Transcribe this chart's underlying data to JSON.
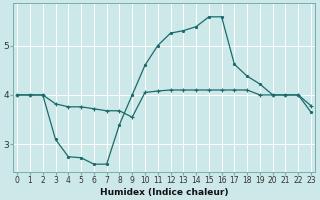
{
  "xlabel": "Humidex (Indice chaleur)",
  "background_color": "#cce8e8",
  "grid_color": "#ffffff",
  "line_color": "#1a6b6b",
  "x_ticks": [
    0,
    1,
    2,
    3,
    4,
    5,
    6,
    7,
    8,
    9,
    10,
    11,
    12,
    13,
    14,
    15,
    16,
    17,
    18,
    19,
    20,
    21,
    22,
    23
  ],
  "y_ticks": [
    3,
    4,
    5
  ],
  "ylim": [
    2.45,
    5.85
  ],
  "xlim": [
    -0.3,
    23.3
  ],
  "line1_x": [
    0,
    1,
    2,
    3,
    4,
    5,
    6,
    7,
    8,
    9,
    10,
    11,
    12,
    13,
    14,
    15,
    16,
    17,
    18,
    19,
    20,
    21,
    22,
    23
  ],
  "line1_y": [
    4.0,
    4.0,
    4.0,
    3.82,
    3.76,
    3.76,
    3.72,
    3.68,
    3.68,
    3.55,
    4.05,
    4.08,
    4.1,
    4.1,
    4.1,
    4.1,
    4.1,
    4.1,
    4.1,
    4.0,
    4.0,
    4.0,
    4.0,
    3.78
  ],
  "line2_x": [
    0,
    1,
    2,
    3,
    4,
    5,
    6,
    7,
    8,
    9,
    10,
    11,
    12,
    13,
    14,
    15,
    16,
    17,
    18,
    19,
    20,
    21,
    22,
    23
  ],
  "line2_y": [
    4.0,
    4.0,
    4.0,
    3.1,
    2.75,
    2.73,
    2.6,
    2.6,
    3.4,
    4.0,
    4.6,
    5.0,
    5.25,
    5.3,
    5.38,
    5.58,
    5.58,
    4.62,
    4.38,
    4.22,
    4.0,
    4.0,
    4.0,
    3.65
  ],
  "tick_fontsize": 5.5,
  "xlabel_fontsize": 6.5
}
